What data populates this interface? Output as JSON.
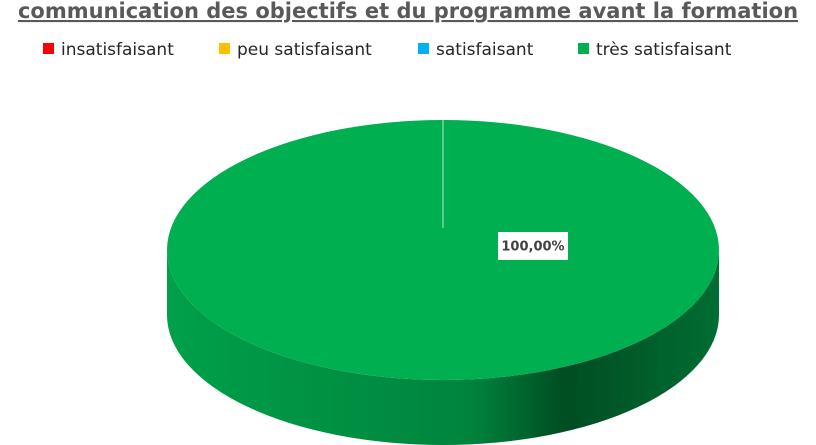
{
  "chart_data": {
    "type": "pie",
    "title": "communication des objectifs et du programme avant la formation",
    "categories": [
      "insatisfaisant",
      "peu satisfaisant",
      "satisfaisant",
      "très satisfaisant"
    ],
    "values": [
      0,
      0,
      0,
      100
    ],
    "value_labels": [
      null,
      null,
      null,
      "100,00%"
    ],
    "colors": [
      "#ff0000",
      "#ffc000",
      "#00b0f0",
      "#00b050"
    ],
    "legend": "top"
  }
}
